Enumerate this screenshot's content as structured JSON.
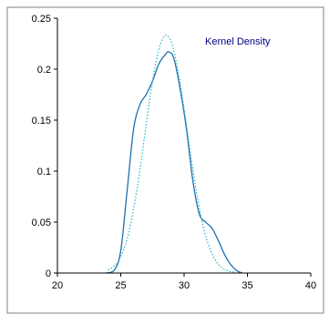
{
  "chart_data": {
    "type": "line",
    "title": "",
    "xlabel": "",
    "ylabel": "",
    "xlim": [
      20,
      40
    ],
    "ylim": [
      0,
      0.25
    ],
    "x_ticks": [
      20,
      25,
      30,
      35,
      40
    ],
    "y_ticks": [
      0,
      0.05,
      0.1,
      0.15,
      0.2,
      0.25
    ],
    "x_tick_labels": [
      "20",
      "25",
      "30",
      "35",
      "40"
    ],
    "y_tick_labels": [
      "0",
      "0.05",
      "0.1",
      "0.15",
      "0.2",
      "0.25"
    ],
    "grid": false,
    "legend_position": "top-right",
    "annotation": "Kernel Density",
    "series": [
      {
        "name": "Kernel Density",
        "style": "solid",
        "color": "#1f6fae",
        "x": [
          23.8,
          24.5,
          25.0,
          25.5,
          26.0,
          26.5,
          27.0,
          27.5,
          28.0,
          28.5,
          28.8,
          29.2,
          29.7,
          30.2,
          30.7,
          31.2,
          31.7,
          32.2,
          32.7,
          33.2,
          33.7,
          34.2,
          34.6
        ],
        "values": [
          0.0,
          0.003,
          0.022,
          0.08,
          0.14,
          0.165,
          0.175,
          0.188,
          0.205,
          0.214,
          0.217,
          0.21,
          0.18,
          0.14,
          0.09,
          0.058,
          0.05,
          0.044,
          0.032,
          0.018,
          0.008,
          0.002,
          0.0
        ]
      },
      {
        "name": "",
        "style": "dotted",
        "color": "#22b5c9",
        "x": [
          24.0,
          24.5,
          25.0,
          25.5,
          26.0,
          26.5,
          27.0,
          27.5,
          28.0,
          28.5,
          29.0,
          29.5,
          30.0,
          30.5,
          31.0,
          31.5,
          32.0,
          32.5,
          33.0,
          33.5,
          34.0
        ],
        "values": [
          0.003,
          0.007,
          0.016,
          0.033,
          0.062,
          0.1,
          0.145,
          0.188,
          0.219,
          0.233,
          0.226,
          0.2,
          0.161,
          0.118,
          0.078,
          0.046,
          0.025,
          0.012,
          0.005,
          0.002,
          0.001
        ]
      }
    ]
  },
  "colors": {
    "axis": "#000000",
    "legend_text": "#000080",
    "frame": "#808080"
  }
}
